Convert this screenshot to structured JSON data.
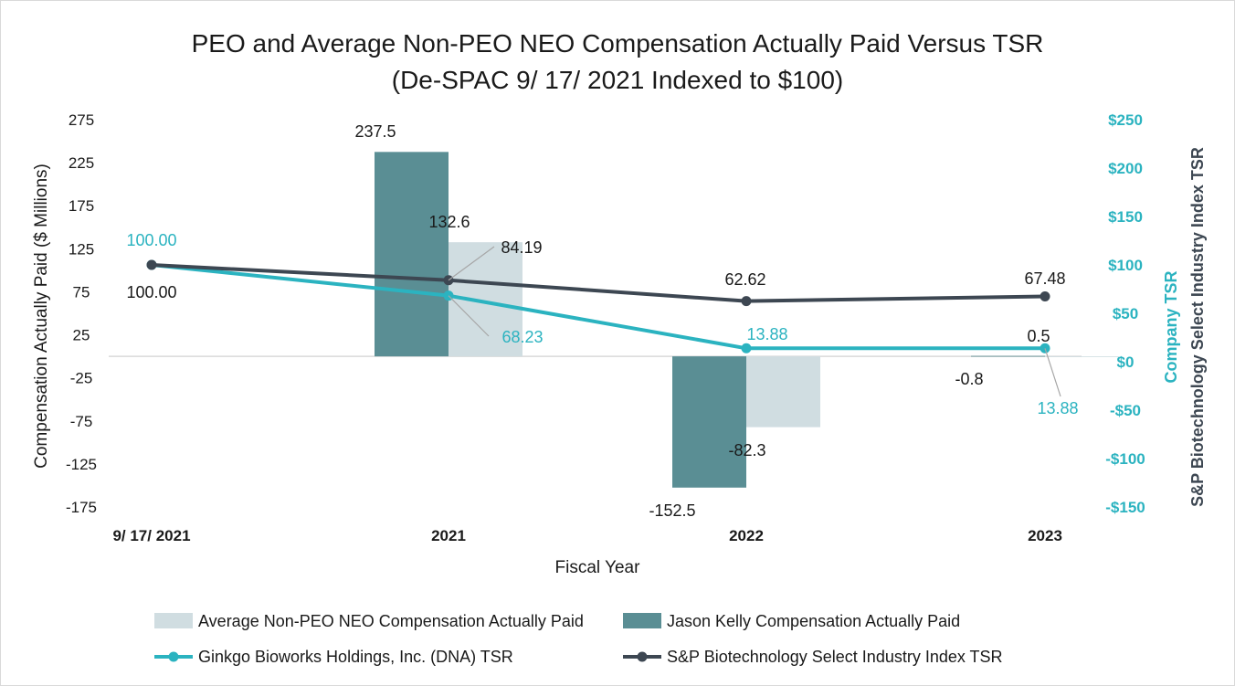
{
  "chart_data": {
    "type": "bar+line",
    "title_line1": "PEO and Average Non-PEO NEO Compensation Actually Paid Versus TSR",
    "title_line2": "(De-SPAC 9/ 17/ 2021 Indexed to $100)",
    "xlabel": "Fiscal Year",
    "ylabel_left": "Compensation Actually Paid ($ Millions)",
    "ylabel_right_1": "Company TSR",
    "ylabel_right_2": "S&P Biotechnology Select Industry Index TSR",
    "categories": [
      "9/ 17/ 2021",
      "2021",
      "2022",
      "2023"
    ],
    "left_axis": {
      "ylim": [
        -175,
        275
      ],
      "ticks": [
        275,
        225,
        175,
        125,
        75,
        25,
        -25,
        -75,
        -125,
        -175
      ]
    },
    "right_axis": {
      "ylim": [
        -150,
        250
      ],
      "ticks": [
        250,
        200,
        150,
        100,
        50,
        0,
        -50,
        -100,
        -150
      ],
      "tick_labels": [
        "$250",
        "$200",
        "$150",
        "$100",
        "$50",
        "$0",
        "-$50",
        "-$100",
        "-$150"
      ]
    },
    "bar_series": [
      {
        "name": "Jason Kelly Compensation Actually Paid",
        "color": "#5a8e94",
        "values": [
          null,
          237.5,
          -152.5,
          0.5
        ],
        "labels": [
          "",
          "237.5",
          "-152.5",
          "0.5"
        ]
      },
      {
        "name": "Average Non-PEO NEO Compensation Actually Paid",
        "color": "#d0dde1",
        "values": [
          null,
          132.6,
          -82.3,
          -0.8
        ],
        "labels": [
          "",
          "132.6",
          "-82.3",
          "-0.8"
        ]
      }
    ],
    "line_series": [
      {
        "name": "Ginkgo Bioworks Holdings, Inc. (DNA) TSR",
        "color": "#2bb3c0",
        "values": [
          100.0,
          68.23,
          13.88,
          13.88
        ],
        "labels": [
          "100.00",
          "68.23",
          "13.88",
          "13.88"
        ]
      },
      {
        "name": "S&P Biotechnology Select Industry Index TSR",
        "color": "#3d4752",
        "values": [
          100.0,
          84.19,
          62.62,
          67.48
        ],
        "labels": [
          "100.00",
          "84.19",
          "62.62",
          "67.48"
        ]
      }
    ],
    "legend": {
      "items": [
        "Average Non-PEO NEO Compensation Actually Paid",
        "Jason Kelly Compensation Actually Paid",
        "Ginkgo Bioworks Holdings, Inc. (DNA) TSR",
        "S&P Biotechnology Select Industry Index TSR"
      ],
      "placement": "bottom"
    }
  }
}
